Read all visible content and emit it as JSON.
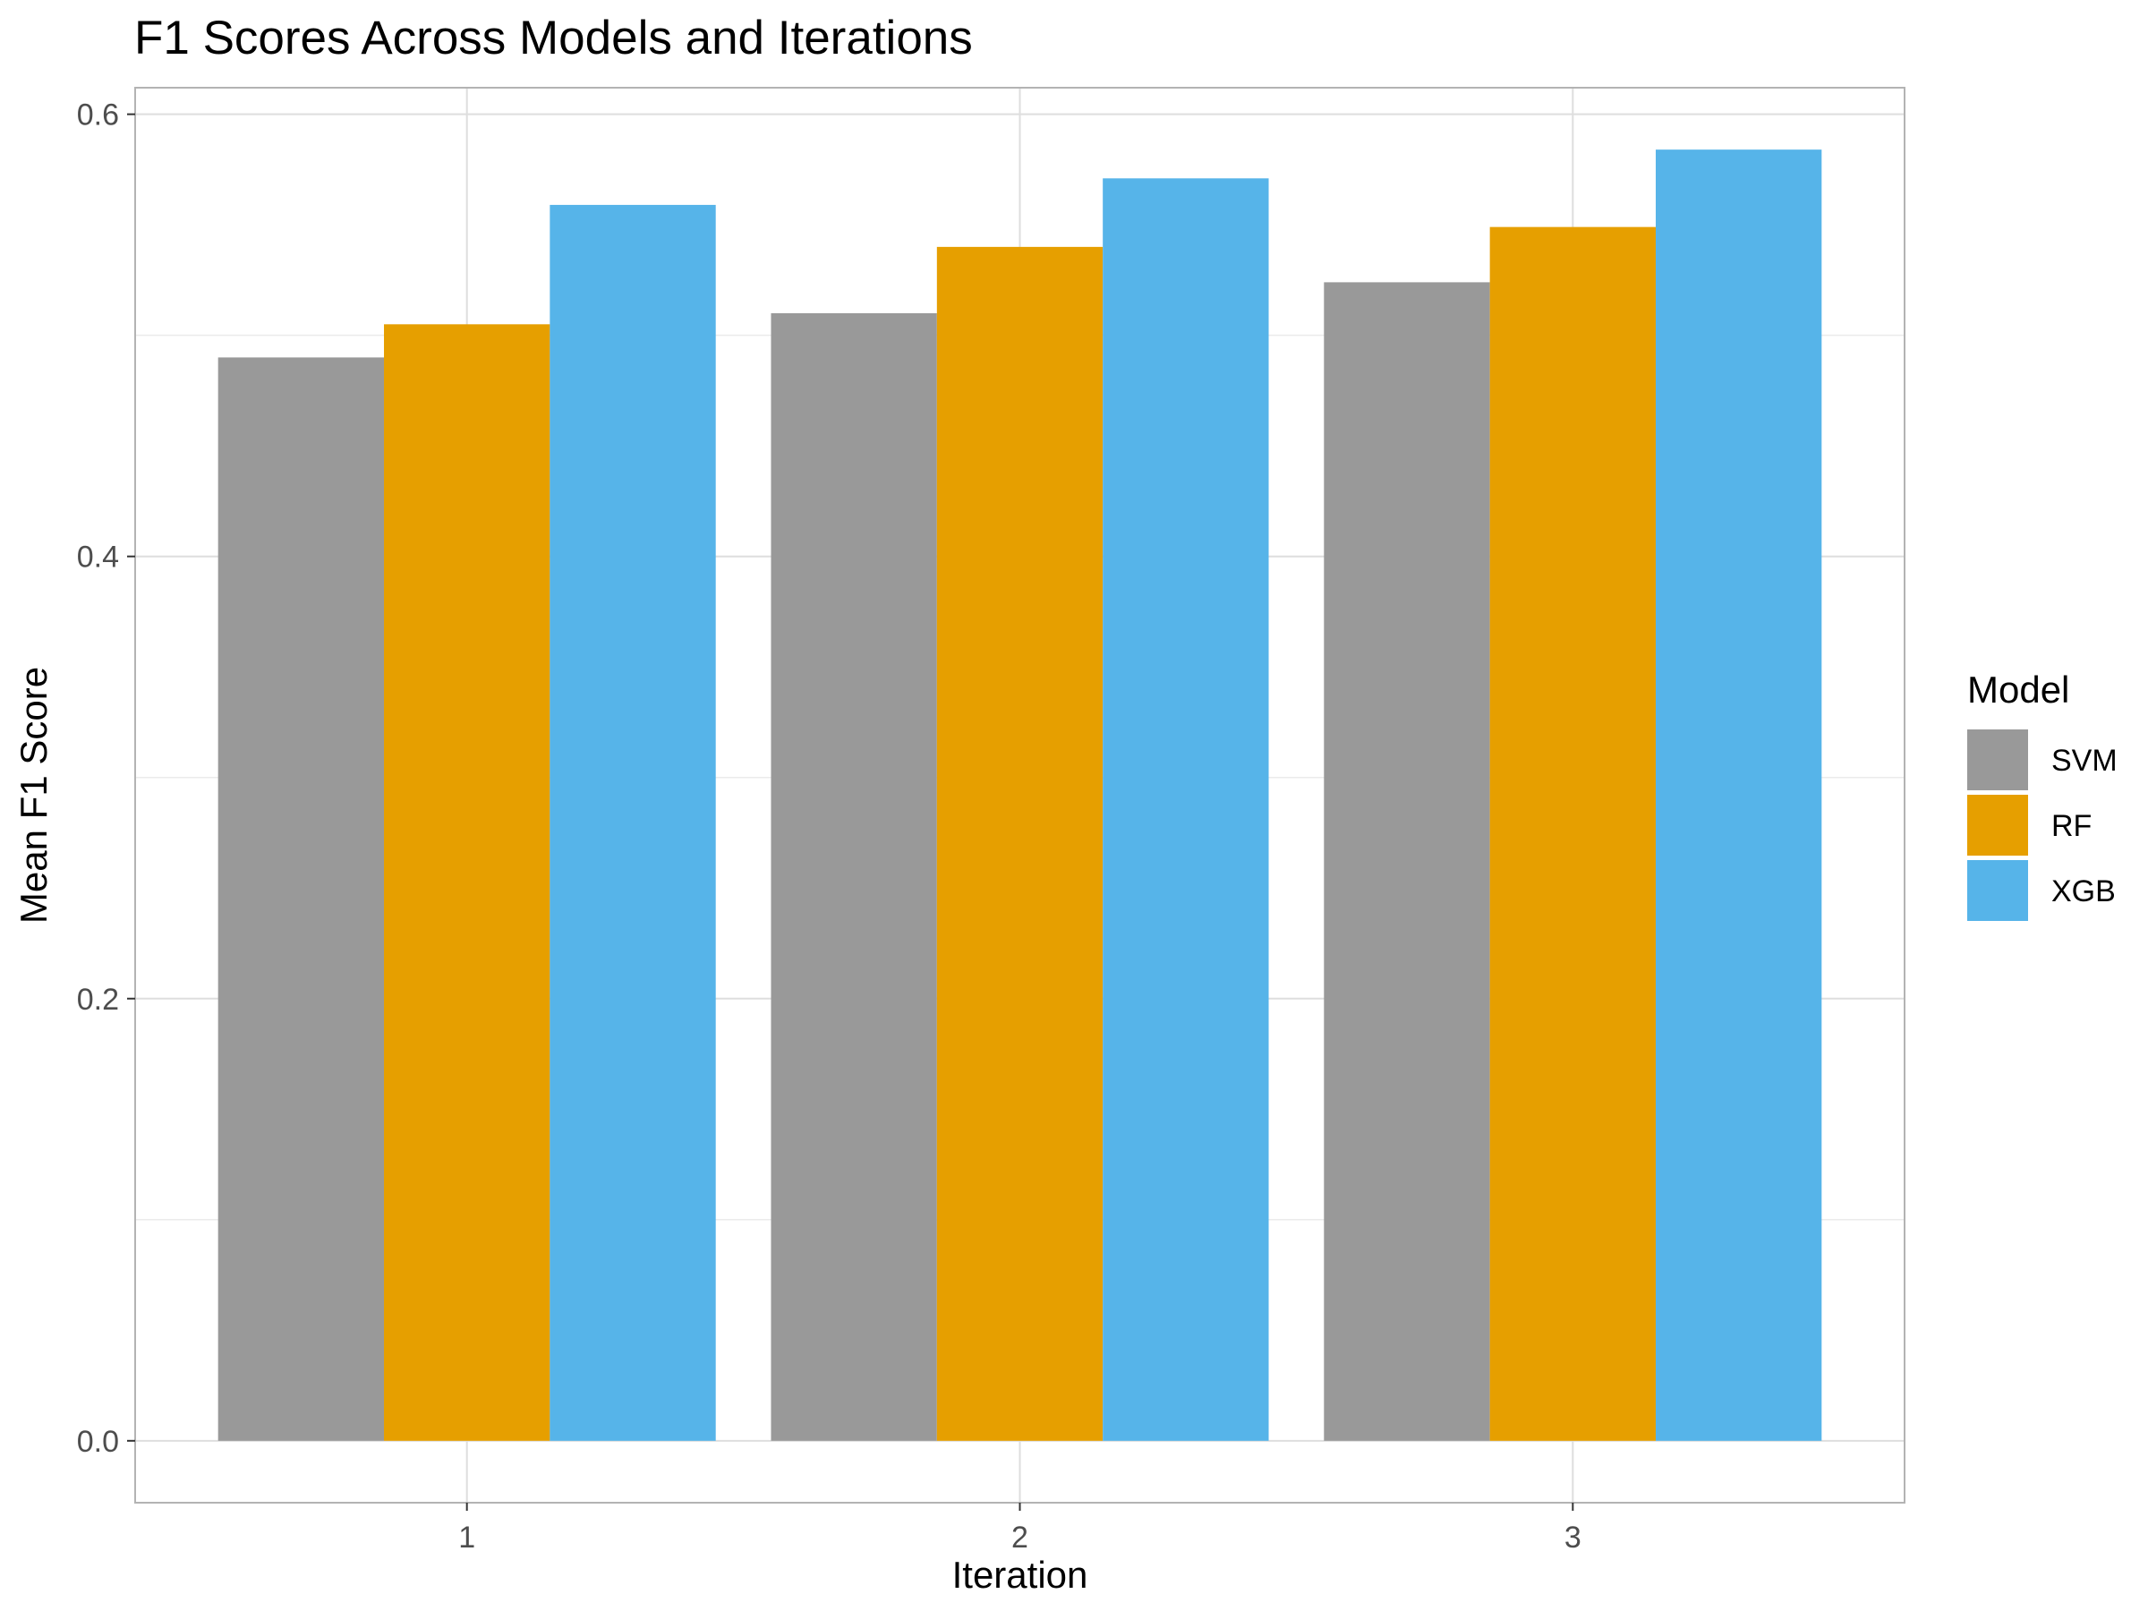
{
  "chart_data": {
    "type": "bar",
    "title": "F1 Scores Across Models and Iterations",
    "xlabel": "Iteration",
    "ylabel": "Mean F1 Score",
    "categories": [
      "1",
      "2",
      "3"
    ],
    "series": [
      {
        "name": "SVM",
        "color": "#999999",
        "values": [
          0.49,
          0.51,
          0.524
        ]
      },
      {
        "name": "RF",
        "color": "#E69F00",
        "values": [
          0.505,
          0.54,
          0.549
        ]
      },
      {
        "name": "XGB",
        "color": "#56B4E9",
        "values": [
          0.559,
          0.571,
          0.584
        ]
      }
    ],
    "ylim": [
      -0.028,
      0.612
    ],
    "yticks": [
      {
        "value": 0.0,
        "label": "0.0"
      },
      {
        "value": 0.2,
        "label": "0.2"
      },
      {
        "value": 0.4,
        "label": "0.4"
      },
      {
        "value": 0.6,
        "label": "0.6"
      }
    ],
    "y_minor_gridlines": [
      0.1,
      0.3,
      0.5
    ],
    "grid": true,
    "legend": {
      "title": "Model",
      "position": "right"
    }
  }
}
